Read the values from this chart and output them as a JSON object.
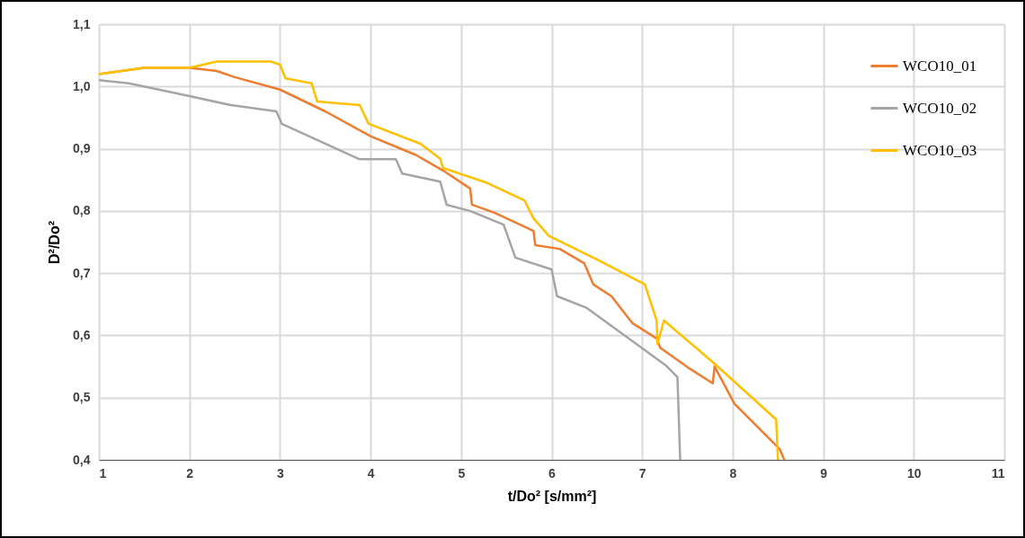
{
  "chart_data": {
    "type": "line",
    "xlabel": "t/Do² [s/mm²]",
    "ylabel": "D²/Do²",
    "xlim": [
      1,
      11
    ],
    "xticks": [
      1,
      2,
      3,
      4,
      5,
      6,
      7,
      8,
      9,
      10,
      11
    ],
    "ylim": [
      0.4,
      1.1
    ],
    "yticks": [
      {
        "value": 0.4,
        "label": "0,4"
      },
      {
        "value": 0.5,
        "label": "0,5"
      },
      {
        "value": 0.6,
        "label": "0,6"
      },
      {
        "value": 0.7,
        "label": "0,7"
      },
      {
        "value": 0.8,
        "label": "0,8"
      },
      {
        "value": 0.9,
        "label": "0,9"
      },
      {
        "value": 1.0,
        "label": "1,0"
      },
      {
        "value": 1.1,
        "label": "1,1"
      }
    ],
    "grid": true,
    "legend": "top right",
    "line_style": "solid",
    "marker": "none",
    "series": [
      {
        "name": "WCO10_01",
        "color": "#ed7d31",
        "x": [
          1,
          1.5,
          2,
          2.3,
          2.5,
          3,
          3.5,
          4,
          4.5,
          4.8,
          5.1,
          5.12,
          5.37,
          5.8,
          5.82,
          6.09,
          6.36,
          6.46,
          6.66,
          6.89,
          7.16,
          7.2,
          7.52,
          7.78,
          7.8,
          8.02,
          8.35,
          8.52,
          8.57
        ],
        "values": [
          1.02,
          1.03,
          1.03,
          1.025,
          1.015,
          0.995,
          0.96,
          0.92,
          0.89,
          0.865,
          0.836,
          0.81,
          0.797,
          0.768,
          0.745,
          0.739,
          0.716,
          0.682,
          0.663,
          0.62,
          0.595,
          0.58,
          0.547,
          0.523,
          0.55,
          0.49,
          0.442,
          0.417,
          0.4
        ]
      },
      {
        "name": "WCO10_02",
        "color": "#a5a5a5",
        "x": [
          1,
          1.33,
          1.99,
          2.46,
          2.96,
          3.02,
          3.88,
          4.28,
          4.35,
          4.77,
          4.84,
          5.1,
          5.47,
          5.6,
          6.0,
          6.06,
          6.39,
          7.26,
          7.39,
          7.42
        ],
        "values": [
          1.01,
          1.005,
          0.985,
          0.97,
          0.96,
          0.94,
          0.883,
          0.883,
          0.86,
          0.847,
          0.81,
          0.8,
          0.778,
          0.725,
          0.706,
          0.663,
          0.644,
          0.552,
          0.533,
          0.4
        ]
      },
      {
        "name": "WCO10_03",
        "color": "#ffc000",
        "x": [
          1,
          1.5,
          2,
          2.3,
          2.9,
          3.0,
          3.06,
          3.35,
          3.41,
          3.88,
          3.98,
          4.55,
          4.77,
          4.8,
          5.27,
          5.7,
          5.8,
          5.97,
          6.53,
          7.03,
          7.16,
          7.17,
          7.24,
          7.78,
          8.48,
          8.5
        ],
        "values": [
          1.02,
          1.03,
          1.03,
          1.04,
          1.04,
          1.035,
          1.013,
          1.005,
          0.976,
          0.97,
          0.94,
          0.908,
          0.884,
          0.869,
          0.846,
          0.817,
          0.788,
          0.76,
          0.72,
          0.682,
          0.624,
          0.586,
          0.624,
          0.557,
          0.465,
          0.4
        ]
      }
    ]
  }
}
